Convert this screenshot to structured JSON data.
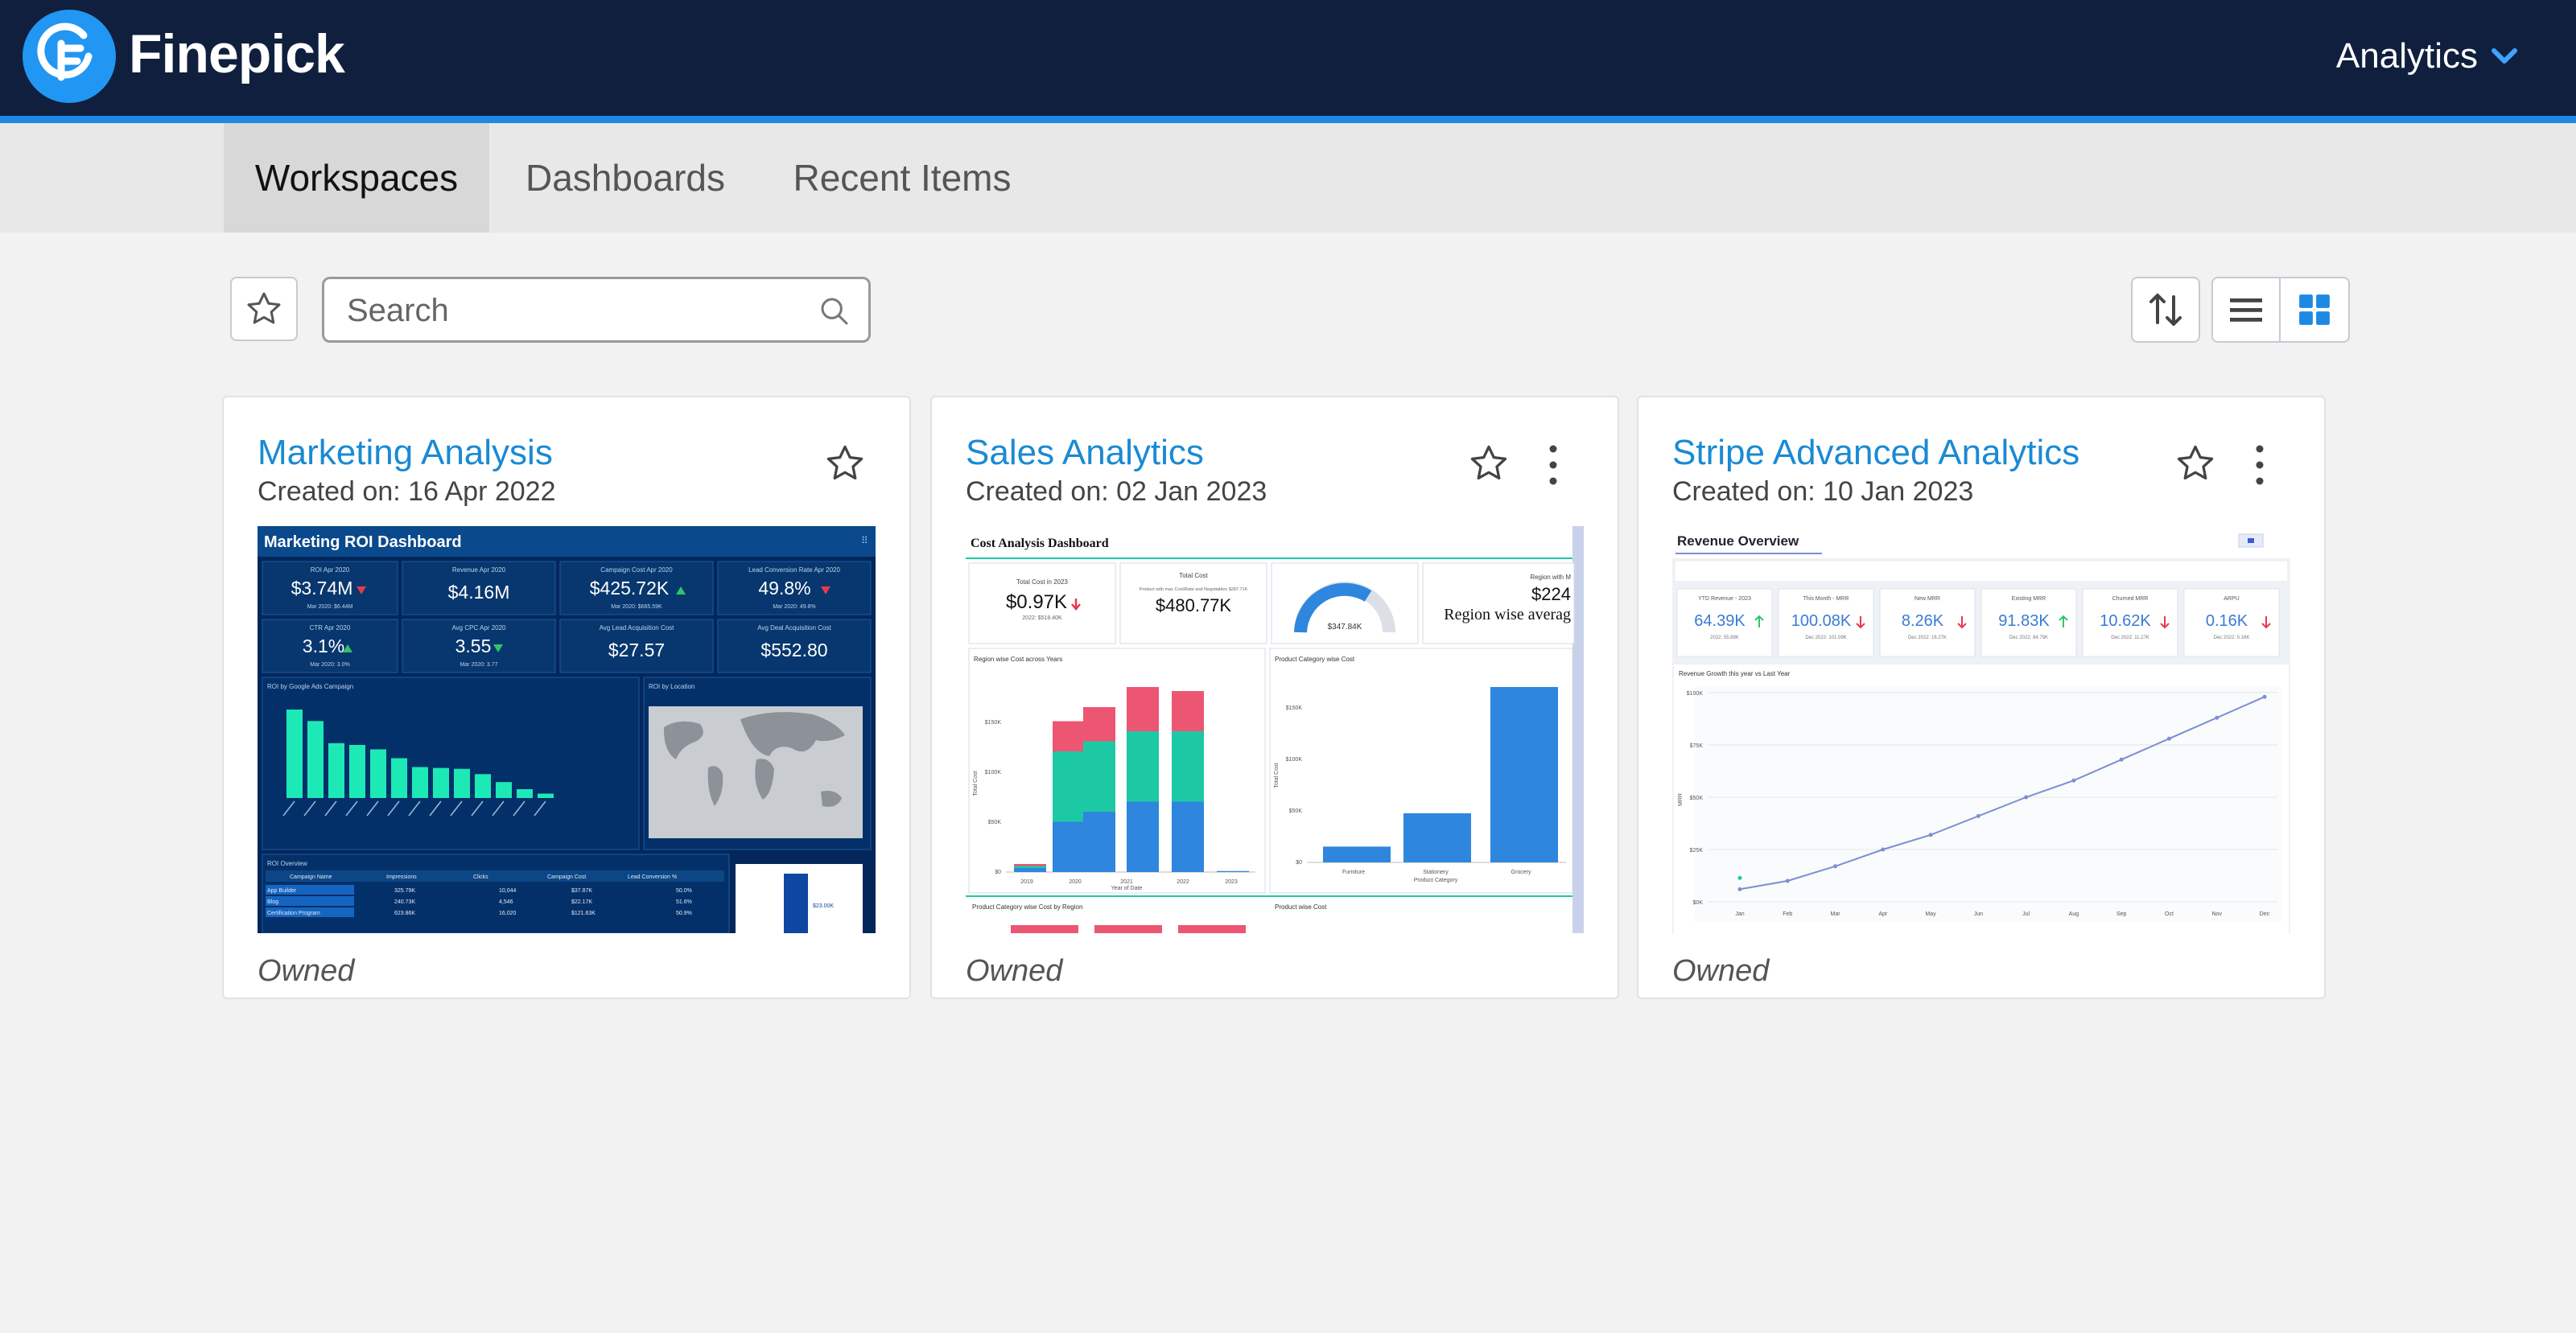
{
  "header": {
    "brand": "Finepick",
    "menu_label": "Analytics",
    "colors": {
      "bar": "#0f1f3d",
      "accent": "#1e88e5",
      "logo": "#2196f3"
    }
  },
  "tabs": [
    {
      "label": "Workspaces",
      "active": true
    },
    {
      "label": "Dashboards",
      "active": false
    },
    {
      "label": "Recent Items",
      "active": false
    }
  ],
  "toolbar": {
    "search_placeholder": "Search",
    "icons": [
      "star-icon",
      "search-icon",
      "sort-icon",
      "list-view-icon",
      "grid-view-icon"
    ],
    "active_view": "grid"
  },
  "cards": [
    {
      "title": "Marketing Analysis",
      "created": "Created on: 16 Apr 2022",
      "ownership": "Owned",
      "has_menu": false,
      "thumbnail": {
        "title": "Marketing ROI Dashboard",
        "kpis": [
          {
            "label": "ROI Apr 2020",
            "value": "$3.74M",
            "trend": "down",
            "sub": "Mar 2020: $6.44M"
          },
          {
            "label": "Revenue Apr 2020",
            "value": "$4.16M",
            "trend": "none",
            "sub": ""
          },
          {
            "label": "Campaign Cost Apr 2020",
            "value": "$425.72K",
            "trend": "up",
            "sub": "Mar 2020: $665.59K"
          },
          {
            "label": "Lead Conversion Rate Apr 2020",
            "value": "49.8%",
            "trend": "down",
            "sub": "Mar 2020: 49.8%"
          },
          {
            "label": "CTR Apr 2020",
            "value": "3.1%",
            "trend": "up",
            "sub": "Mar 2020: 3.0%"
          },
          {
            "label": "Avg CPC Apr 2020",
            "value": "3.55",
            "trend": "down",
            "sub": "Mar 2020: 3.77"
          },
          {
            "label": "Avg Lead Acquisition Cost",
            "value": "$27.57",
            "trend": "none",
            "sub": ""
          },
          {
            "label": "Avg Deal Acquisition Cost",
            "value": "$552.80",
            "trend": "none",
            "sub": ""
          }
        ],
        "bar_panel": "ROI by Google Ads Campaign",
        "bars": [
          1.0,
          0.87,
          0.62,
          0.6,
          0.55,
          0.45,
          0.35,
          0.34,
          0.33,
          0.27,
          0.18,
          0.1,
          0.05
        ],
        "map_panel": "ROI by Location",
        "table_panel": "ROI Overview",
        "table_headers": [
          "Campaign Name",
          "Impressions",
          "Clicks",
          "Campaign Cost",
          "Lead Conversion %"
        ],
        "table_rows": [
          [
            "App Builder",
            "325.79K",
            "10,044",
            "$37.87K",
            "50.0%"
          ],
          [
            "Blog",
            "240.73K",
            "4,546",
            "$22.17K",
            "51.6%"
          ],
          [
            "Certification Program",
            "623.86K",
            "16,020",
            "$121.63K",
            "50.9%"
          ]
        ],
        "side_value": "$23.00K"
      }
    },
    {
      "title": "Sales Analytics",
      "created": "Created on: 02 Jan 2023",
      "ownership": "Owned",
      "has_menu": true,
      "thumbnail": {
        "title": "Cost Analysis Dashboard",
        "kpis": [
          {
            "label": "Total Cost in 2023",
            "value": "$0.97K",
            "trend": "down",
            "sub": "2022: $518.40K"
          },
          {
            "label": "Total Cost",
            "value": "$480.77K",
            "trend": "none",
            "sub": "Product with max Cost/Rate and Negotiables $287.71K"
          },
          {
            "label": "",
            "value": "$347.84K",
            "trend": "gauge",
            "sub": ""
          },
          {
            "label": "Region with M",
            "value": "$224",
            "trend": "none",
            "sub": "Region wise averag"
          }
        ],
        "stack_panel": "Region wise Cost across Years",
        "stack_years": [
          "2019",
          "2020",
          "2021",
          "2022",
          "2023"
        ],
        "stack_axis": [
          "$0",
          "$50K",
          "$100K",
          "$150K"
        ],
        "stack_xlabel": "Year of Date",
        "stack_ylabel": "Total Cost",
        "stacks": [
          [
            0.02,
            0.01,
            0.01
          ],
          [
            0.25,
            0.35,
            0.15
          ],
          [
            0.3,
            0.35,
            0.17
          ],
          [
            0.35,
            0.35,
            0.22
          ],
          [
            0.35,
            0.35,
            0.2
          ],
          [
            0.005,
            0.0,
            0.0
          ]
        ],
        "product_panel": "Product Category wise Cost",
        "product_categories": [
          "Furniture",
          "Stationery",
          "Grocery"
        ],
        "product_values": [
          0.09,
          0.28,
          1.0
        ],
        "product_axis": [
          "$0",
          "$50K",
          "$100K",
          "$150K"
        ],
        "product_xlabel": "Product Category",
        "product_ylabel": "Total Cost",
        "bottom_left_panel": "Product Category wise Cost by Region",
        "bottom_right_panel": "Product wise Cost",
        "colors": {
          "blue": "#2e86de",
          "teal": "#1dc9a4",
          "red": "#ec5673"
        }
      }
    },
    {
      "title": "Stripe Advanced Analytics",
      "created": "Created on: 10 Jan 2023",
      "ownership": "Owned",
      "has_menu": true,
      "thumbnail": {
        "title": "Revenue Overview",
        "kpis": [
          {
            "label": "YTD Revenue - 2023",
            "value": "64.39K",
            "trend": "up",
            "sub": "2022: 55.89K"
          },
          {
            "label": "This Month - MRR",
            "value": "100.08K",
            "trend": "down",
            "sub": "Dec 2022: 101.09K"
          },
          {
            "label": "New MRR",
            "value": "8.26K",
            "trend": "down",
            "sub": "Dec 2022: 16.27K"
          },
          {
            "label": "Existing MRR",
            "value": "91.83K",
            "trend": "up",
            "sub": "Dec 2022: 84.79K"
          },
          {
            "label": "Churned MRR",
            "value": "10.62K",
            "trend": "down",
            "sub": "Dec 2022: 11.27K"
          },
          {
            "label": "ARPU",
            "value": "0.16K",
            "trend": "down",
            "sub": "Dec 2022: 0.16K"
          }
        ],
        "line_panel": "Revenue Growth this year vs Last Year",
        "months": [
          "Jan",
          "Feb",
          "Mar",
          "Apr",
          "May",
          "Jun",
          "Jul",
          "Aug",
          "Sep",
          "Oct",
          "Nov",
          "Dec"
        ],
        "line_axis": [
          "$0K",
          "$25K",
          "$50K",
          "$75K",
          "$100K"
        ],
        "line_ylabel": "MRR",
        "line_values": [
          6,
          10,
          17,
          25,
          32,
          41,
          50,
          58,
          68,
          78,
          88,
          98
        ]
      }
    }
  ]
}
